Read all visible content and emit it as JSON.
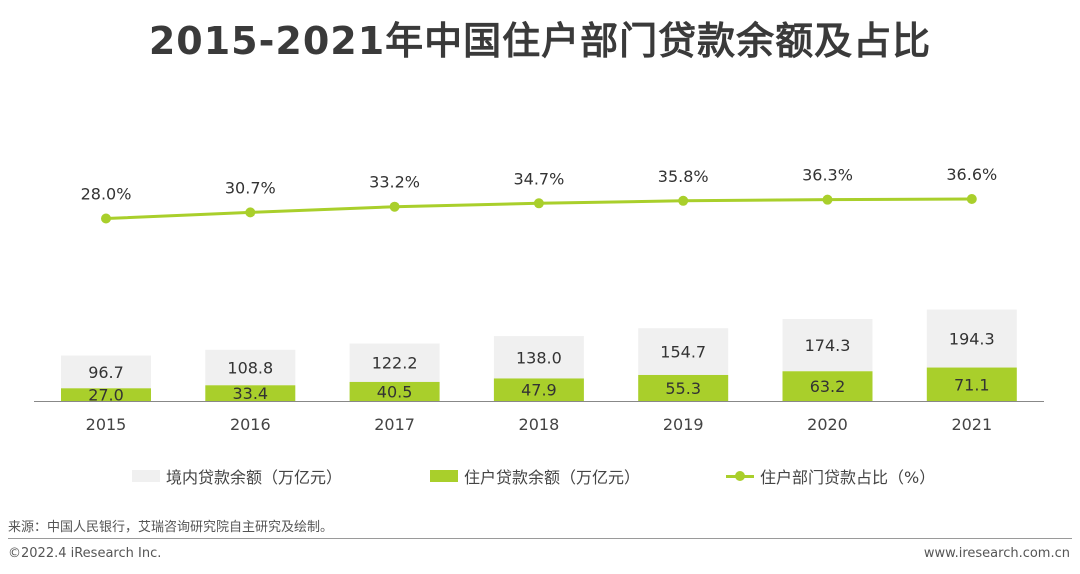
{
  "title": "2015-2021年中国住户部门贷款余额及占比",
  "colors": {
    "domestic": "#f0f0f0",
    "household": "#a9cf2b",
    "ratio": "#a9cf2b",
    "axis": "#888888",
    "text": "#333333"
  },
  "legend": {
    "domestic": "境内贷款余额（万亿元）",
    "household": "住户贷款余额（万亿元）",
    "ratio": "住户部门贷款占比（%）"
  },
  "chart_data": {
    "type": "bar",
    "stacked": true,
    "categories": [
      "2015",
      "2016",
      "2017",
      "2018",
      "2019",
      "2020",
      "2021"
    ],
    "series": [
      {
        "name": "境内贷款余额（万亿元）",
        "type": "bar",
        "values": [
          96.7,
          108.8,
          122.2,
          138.0,
          154.7,
          174.3,
          194.3
        ],
        "labels": [
          "96.7",
          "108.8",
          "122.2",
          "138.0",
          "154.7",
          "174.3",
          "194.3"
        ]
      },
      {
        "name": "住户贷款余额（万亿元）",
        "type": "bar",
        "values": [
          27.0,
          33.4,
          40.5,
          47.9,
          55.3,
          63.2,
          71.1
        ],
        "labels": [
          "27.0",
          "33.4",
          "40.5",
          "47.9",
          "55.3",
          "63.2",
          "71.1"
        ]
      },
      {
        "name": "住户部门贷款占比（%）",
        "type": "line",
        "values": [
          28.0,
          30.7,
          33.2,
          34.7,
          35.8,
          36.3,
          36.6
        ],
        "labels": [
          "28.0%",
          "30.7%",
          "33.2%",
          "34.7%",
          "35.8%",
          "36.3%",
          "36.6%"
        ]
      }
    ],
    "legend_position": "bottom",
    "grid": false
  },
  "footer": {
    "source": "来源：中国人民银行，艾瑞咨询研究院自主研究及绘制。",
    "copyright": "©2022.4 iResearch Inc.",
    "website": "www.iresearch.com.cn"
  }
}
